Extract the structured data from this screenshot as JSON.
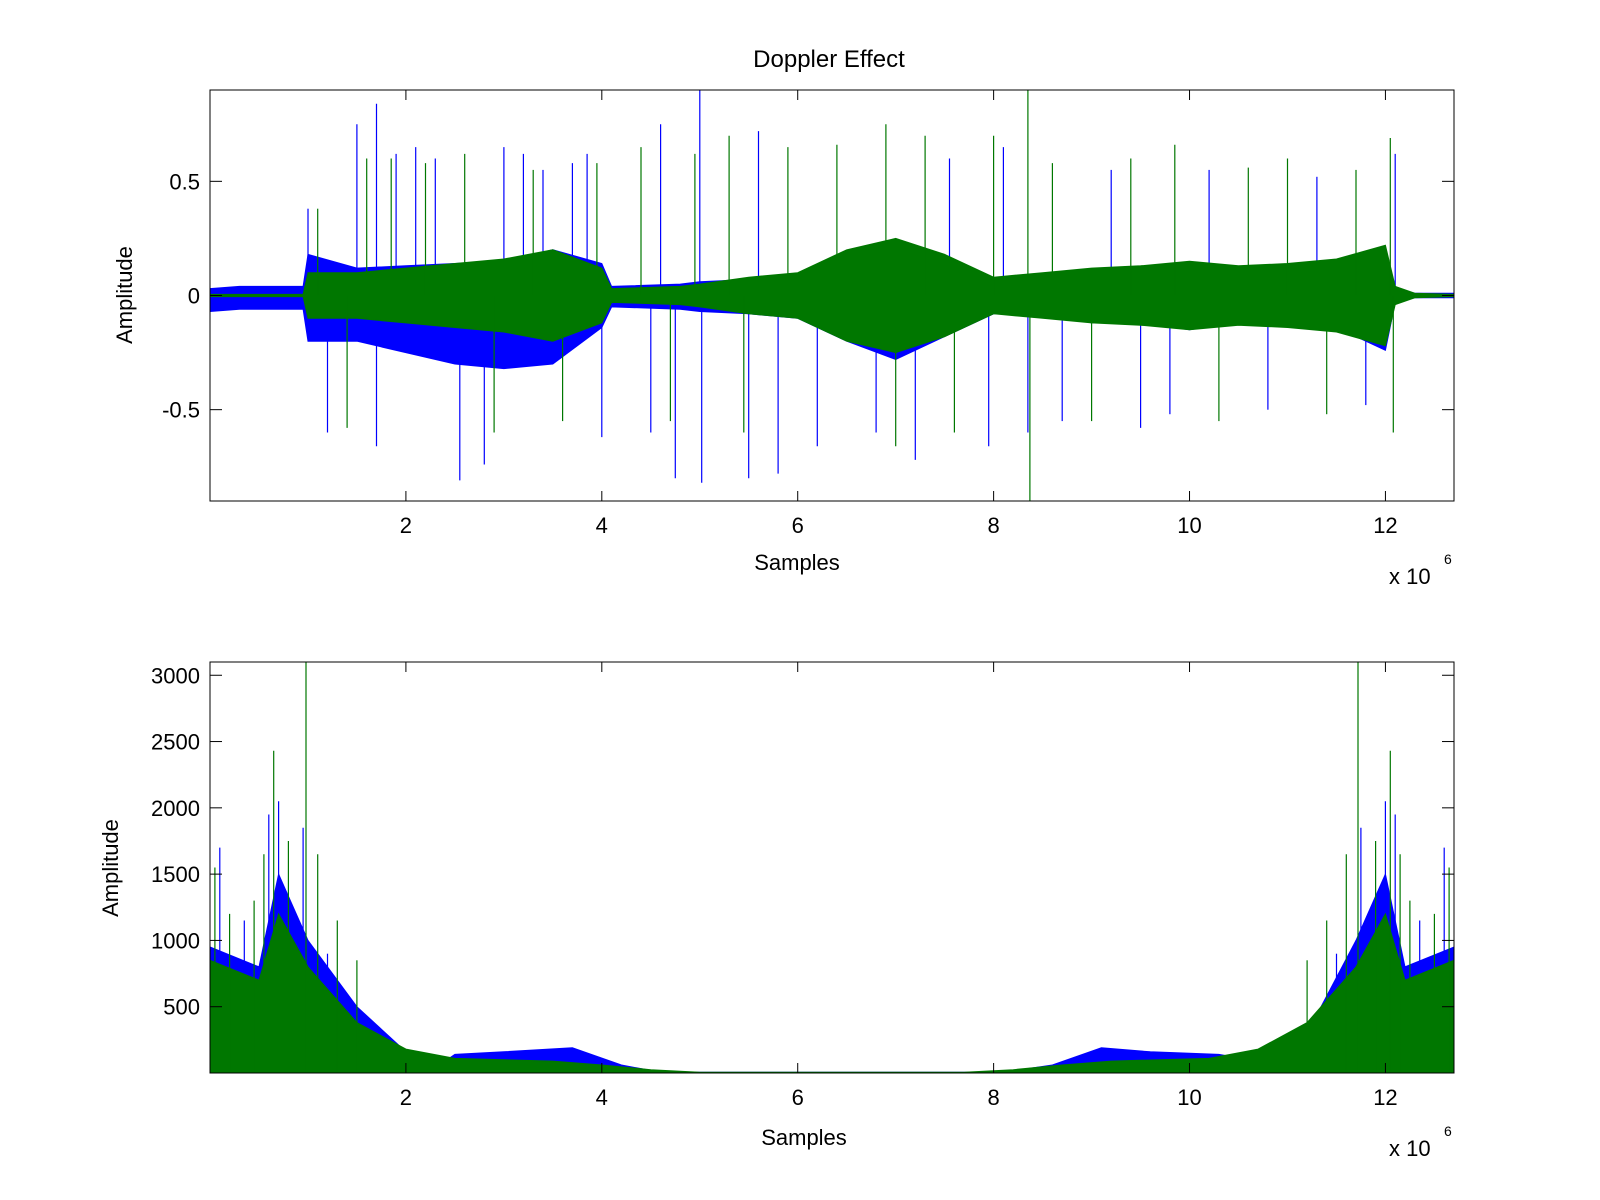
{
  "figure": {
    "title": "Doppler Effect"
  },
  "chart_data": [
    {
      "type": "line",
      "title": "Doppler Effect",
      "xlabel": "Samples",
      "ylabel": "Amplitude",
      "x_multiplier": "x 10",
      "x_multiplier_exp": "6",
      "xlim": [
        0,
        12.7
      ],
      "ylim": [
        -0.9,
        0.9
      ],
      "xticks": [
        2,
        4,
        6,
        8,
        10,
        12
      ],
      "xtick_labels": [
        "2",
        "4",
        "6",
        "8",
        "10",
        "12"
      ],
      "yticks": [
        0.5,
        0,
        -0.5
      ],
      "ytick_labels": [
        "0.5",
        "0",
        "-0.5"
      ],
      "grid": false,
      "series": [
        {
          "color": "#0000ff",
          "envelope": {
            "x": [
              0,
              0.3,
              0.95,
              1.0,
              1.5,
              2.0,
              2.5,
              3.0,
              3.5,
              4.0,
              4.1,
              4.8,
              5.0,
              5.5,
              6.0,
              6.5,
              7.0,
              7.5,
              8.0,
              8.5,
              9.0,
              9.5,
              10.0,
              10.5,
              11.0,
              11.5,
              12.0,
              12.1,
              12.3,
              12.7
            ],
            "upper": [
              0.03,
              0.04,
              0.04,
              0.18,
              0.12,
              0.13,
              0.14,
              0.15,
              0.2,
              0.14,
              0.04,
              0.05,
              0.06,
              0.07,
              0.08,
              0.16,
              0.2,
              0.13,
              0.06,
              0.07,
              0.1,
              0.11,
              0.14,
              0.1,
              0.11,
              0.12,
              0.2,
              0.03,
              0.01,
              0.01
            ],
            "lower": [
              -0.07,
              -0.06,
              -0.06,
              -0.2,
              -0.2,
              -0.25,
              -0.3,
              -0.32,
              -0.3,
              -0.14,
              -0.05,
              -0.06,
              -0.07,
              -0.08,
              -0.1,
              -0.2,
              -0.28,
              -0.18,
              -0.08,
              -0.08,
              -0.12,
              -0.12,
              -0.15,
              -0.12,
              -0.13,
              -0.14,
              -0.24,
              -0.03,
              -0.01,
              -0.01
            ]
          },
          "spikes": [
            {
              "x": 1.0,
              "y": 0.38
            },
            {
              "x": 1.2,
              "y": -0.6
            },
            {
              "x": 1.5,
              "y": 0.75
            },
            {
              "x": 1.7,
              "y": 0.84
            },
            {
              "x": 1.7,
              "y": -0.66
            },
            {
              "x": 1.9,
              "y": 0.62
            },
            {
              "x": 2.1,
              "y": 0.65
            },
            {
              "x": 2.3,
              "y": 0.6
            },
            {
              "x": 2.55,
              "y": -0.81
            },
            {
              "x": 2.8,
              "y": -0.74
            },
            {
              "x": 3.0,
              "y": 0.65
            },
            {
              "x": 3.2,
              "y": 0.62
            },
            {
              "x": 3.4,
              "y": 0.55
            },
            {
              "x": 3.7,
              "y": 0.58
            },
            {
              "x": 3.85,
              "y": 0.62
            },
            {
              "x": 4.0,
              "y": -0.62
            },
            {
              "x": 4.5,
              "y": -0.6
            },
            {
              "x": 4.6,
              "y": 0.75
            },
            {
              "x": 4.75,
              "y": -0.8
            },
            {
              "x": 5.0,
              "y": 0.9
            },
            {
              "x": 5.02,
              "y": -0.82
            },
            {
              "x": 5.5,
              "y": -0.8
            },
            {
              "x": 5.6,
              "y": 0.72
            },
            {
              "x": 5.8,
              "y": -0.78
            },
            {
              "x": 6.2,
              "y": -0.66
            },
            {
              "x": 6.8,
              "y": -0.6
            },
            {
              "x": 7.2,
              "y": -0.72
            },
            {
              "x": 7.55,
              "y": 0.6
            },
            {
              "x": 7.95,
              "y": -0.66
            },
            {
              "x": 8.1,
              "y": 0.65
            },
            {
              "x": 8.35,
              "y": -0.6
            },
            {
              "x": 8.7,
              "y": -0.55
            },
            {
              "x": 9.2,
              "y": 0.55
            },
            {
              "x": 9.5,
              "y": -0.58
            },
            {
              "x": 9.8,
              "y": -0.52
            },
            {
              "x": 10.2,
              "y": 0.55
            },
            {
              "x": 10.8,
              "y": -0.5
            },
            {
              "x": 11.3,
              "y": 0.52
            },
            {
              "x": 11.8,
              "y": -0.48
            },
            {
              "x": 12.1,
              "y": 0.62
            }
          ]
        },
        {
          "color": "#007700",
          "envelope": {
            "x": [
              0,
              0.3,
              0.95,
              1.0,
              1.5,
              2.0,
              2.5,
              3.0,
              3.5,
              4.0,
              4.1,
              4.8,
              5.0,
              5.5,
              6.0,
              6.5,
              7.0,
              7.5,
              8.0,
              8.5,
              9.0,
              9.5,
              10.0,
              10.5,
              11.0,
              11.5,
              12.0,
              12.1,
              12.3,
              12.7
            ],
            "upper": [
              0.005,
              0.005,
              0.005,
              0.1,
              0.1,
              0.12,
              0.14,
              0.16,
              0.2,
              0.12,
              0.03,
              0.04,
              0.05,
              0.08,
              0.1,
              0.2,
              0.25,
              0.18,
              0.08,
              0.1,
              0.12,
              0.13,
              0.15,
              0.13,
              0.14,
              0.16,
              0.22,
              0.04,
              0.01,
              0.005
            ],
            "lower": [
              -0.005,
              -0.005,
              -0.005,
              -0.1,
              -0.1,
              -0.12,
              -0.14,
              -0.16,
              -0.2,
              -0.12,
              -0.03,
              -0.04,
              -0.05,
              -0.08,
              -0.1,
              -0.2,
              -0.25,
              -0.18,
              -0.08,
              -0.1,
              -0.12,
              -0.13,
              -0.15,
              -0.13,
              -0.14,
              -0.16,
              -0.22,
              -0.04,
              -0.01,
              -0.005
            ]
          },
          "spikes": [
            {
              "x": 1.1,
              "y": 0.38
            },
            {
              "x": 1.4,
              "y": -0.58
            },
            {
              "x": 1.6,
              "y": 0.6
            },
            {
              "x": 1.85,
              "y": 0.6
            },
            {
              "x": 2.2,
              "y": 0.58
            },
            {
              "x": 2.6,
              "y": 0.62
            },
            {
              "x": 2.9,
              "y": -0.6
            },
            {
              "x": 3.3,
              "y": 0.55
            },
            {
              "x": 3.6,
              "y": -0.55
            },
            {
              "x": 3.95,
              "y": 0.58
            },
            {
              "x": 4.4,
              "y": 0.65
            },
            {
              "x": 4.7,
              "y": -0.55
            },
            {
              "x": 4.95,
              "y": 0.62
            },
            {
              "x": 5.3,
              "y": 0.7
            },
            {
              "x": 5.45,
              "y": -0.6
            },
            {
              "x": 5.9,
              "y": 0.65
            },
            {
              "x": 6.4,
              "y": 0.66
            },
            {
              "x": 6.9,
              "y": 0.75
            },
            {
              "x": 7.0,
              "y": -0.66
            },
            {
              "x": 7.3,
              "y": 0.7
            },
            {
              "x": 7.6,
              "y": -0.6
            },
            {
              "x": 8.0,
              "y": 0.7
            },
            {
              "x": 8.35,
              "y": 0.9
            },
            {
              "x": 8.37,
              "y": -0.9
            },
            {
              "x": 8.6,
              "y": 0.58
            },
            {
              "x": 9.0,
              "y": -0.55
            },
            {
              "x": 9.4,
              "y": 0.6
            },
            {
              "x": 9.85,
              "y": 0.66
            },
            {
              "x": 10.3,
              "y": -0.55
            },
            {
              "x": 10.6,
              "y": 0.56
            },
            {
              "x": 11.0,
              "y": 0.6
            },
            {
              "x": 11.4,
              "y": -0.52
            },
            {
              "x": 11.7,
              "y": 0.55
            },
            {
              "x": 12.05,
              "y": 0.69
            },
            {
              "x": 12.08,
              "y": -0.6
            }
          ]
        }
      ]
    },
    {
      "type": "line",
      "title": "",
      "xlabel": "Samples",
      "ylabel": "Amplitude",
      "x_multiplier": "x 10",
      "x_multiplier_exp": "6",
      "xlim": [
        0,
        12.7
      ],
      "ylim": [
        0,
        3100
      ],
      "xticks": [
        2,
        4,
        6,
        8,
        10,
        12
      ],
      "xtick_labels": [
        "2",
        "4",
        "6",
        "8",
        "10",
        "12"
      ],
      "yticks": [
        3000,
        2500,
        2000,
        1500,
        1000,
        500
      ],
      "ytick_labels": [
        "3000",
        "2500",
        "2000",
        "1500",
        "1000",
        "500"
      ],
      "grid": false,
      "series": [
        {
          "color": "#0000ff",
          "envelope": {
            "x": [
              0,
              0.5,
              0.7,
              1.0,
              1.5,
              2.0,
              2.4,
              2.5,
              3.0,
              3.7,
              4.2,
              4.6,
              8.1,
              8.6,
              9.1,
              9.6,
              10.3,
              10.7,
              11.2,
              11.7,
              12.0,
              12.2,
              12.7
            ],
            "upper": [
              950,
              800,
              1500,
              1000,
              500,
              160,
              90,
              140,
              160,
              190,
              60,
              5,
              5,
              60,
              190,
              160,
              140,
              90,
              300,
              1000,
              1500,
              800,
              950
            ],
            "lower": [
              0,
              0,
              0,
              0,
              0,
              0,
              0,
              0,
              0,
              0,
              0,
              0,
              0,
              0,
              0,
              0,
              0,
              0,
              0,
              0,
              0,
              0,
              0
            ]
          },
          "spikes": [
            {
              "x": 0.1,
              "y": 1700
            },
            {
              "x": 0.35,
              "y": 1150
            },
            {
              "x": 0.6,
              "y": 1950
            },
            {
              "x": 0.7,
              "y": 2050
            },
            {
              "x": 0.95,
              "y": 1850
            },
            {
              "x": 1.2,
              "y": 900
            },
            {
              "x": 11.5,
              "y": 900
            },
            {
              "x": 11.75,
              "y": 1850
            },
            {
              "x": 12.0,
              "y": 2050
            },
            {
              "x": 12.1,
              "y": 1950
            },
            {
              "x": 12.35,
              "y": 1150
            },
            {
              "x": 12.6,
              "y": 1700
            }
          ]
        },
        {
          "color": "#007700",
          "envelope": {
            "x": [
              0,
              0.5,
              0.7,
              1.0,
              1.5,
              2.0,
              2.5,
              3.0,
              3.5,
              4.0,
              4.5,
              5.0,
              7.7,
              8.2,
              8.7,
              9.2,
              9.7,
              10.2,
              10.7,
              11.2,
              11.7,
              12.0,
              12.2,
              12.7
            ],
            "upper": [
              850,
              700,
              1200,
              800,
              380,
              180,
              110,
              100,
              90,
              60,
              25,
              5,
              5,
              25,
              60,
              90,
              100,
              110,
              180,
              380,
              800,
              1200,
              700,
              850
            ],
            "lower": [
              0,
              0,
              0,
              0,
              0,
              0,
              0,
              0,
              0,
              0,
              0,
              0,
              0,
              0,
              0,
              0,
              0,
              0,
              0,
              0,
              0,
              0,
              0,
              0
            ]
          },
          "spikes": [
            {
              "x": 0.05,
              "y": 1550
            },
            {
              "x": 0.2,
              "y": 1200
            },
            {
              "x": 0.45,
              "y": 1300
            },
            {
              "x": 0.55,
              "y": 1650
            },
            {
              "x": 0.65,
              "y": 2430
            },
            {
              "x": 0.8,
              "y": 1750
            },
            {
              "x": 0.98,
              "y": 3100
            },
            {
              "x": 1.1,
              "y": 1650
            },
            {
              "x": 1.3,
              "y": 1150
            },
            {
              "x": 1.5,
              "y": 850
            },
            {
              "x": 11.2,
              "y": 850
            },
            {
              "x": 11.4,
              "y": 1150
            },
            {
              "x": 11.6,
              "y": 1650
            },
            {
              "x": 11.72,
              "y": 3100
            },
            {
              "x": 11.9,
              "y": 1750
            },
            {
              "x": 12.05,
              "y": 2430
            },
            {
              "x": 12.15,
              "y": 1650
            },
            {
              "x": 12.25,
              "y": 1300
            },
            {
              "x": 12.5,
              "y": 1200
            },
            {
              "x": 12.65,
              "y": 1550
            }
          ]
        }
      ]
    }
  ]
}
